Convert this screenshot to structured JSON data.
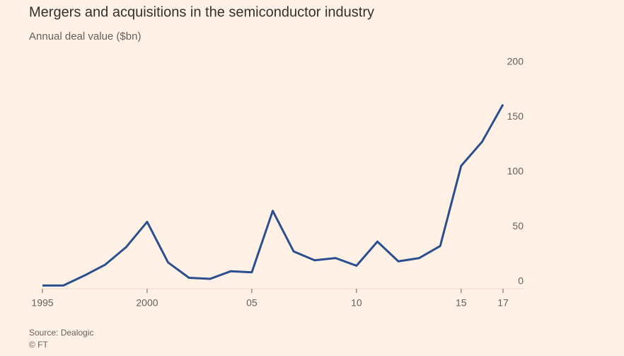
{
  "chart_data": {
    "type": "line",
    "title": "Mergers and acquisitions in the semiconductor industry",
    "subtitle": "Annual deal value ($bn)",
    "source": "Source: Dealogic",
    "credit": "© FT",
    "x": [
      1995,
      1996,
      1997,
      1998,
      1999,
      2000,
      2001,
      2002,
      2003,
      2004,
      2005,
      2006,
      2007,
      2008,
      2009,
      2010,
      2011,
      2012,
      2013,
      2014,
      2015,
      2016,
      2017
    ],
    "series": [
      {
        "color": "#2b4f8e",
        "values": [
          3,
          3,
          12,
          22,
          38,
          61,
          24,
          10,
          9,
          16,
          15,
          71,
          34,
          26,
          28,
          21,
          43,
          25,
          28,
          39,
          112,
          134,
          168
        ]
      }
    ],
    "xlim": [
      1995,
      2017
    ],
    "xticks": [
      1995,
      2000,
      {
        "value": 2005,
        "label": "05"
      },
      {
        "value": 2010,
        "label": "10"
      },
      {
        "value": 2015,
        "label": "15"
      },
      {
        "value": 2017,
        "label": "17"
      }
    ],
    "ylim": [
      0,
      200
    ],
    "yticks": [
      0,
      50,
      100,
      150,
      200
    ],
    "y_axis_side": "right"
  }
}
